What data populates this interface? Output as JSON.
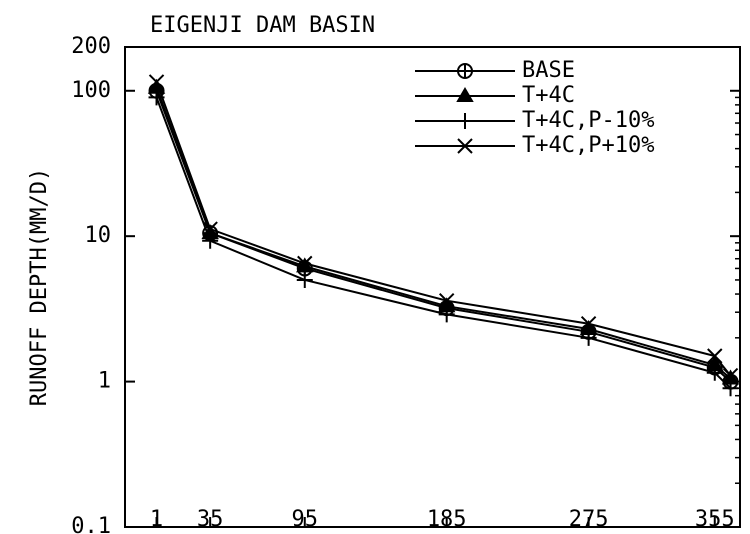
{
  "chart_data": {
    "type": "line",
    "title": "EIGENJI DAM BASIN",
    "y_label": "RUNOFF DEPTH(MM/D)",
    "x": [
      1,
      35,
      95,
      185,
      275,
      355,
      365
    ],
    "xlim": [
      -19,
      371
    ],
    "xticks": [
      1,
      35,
      95,
      185,
      275,
      355
    ],
    "ylim": [
      0.1,
      200
    ],
    "yticks": [
      0.1,
      1,
      10,
      100,
      200
    ],
    "log_y": true,
    "legend": "upper right",
    "series": [
      {
        "name": "BASE",
        "color": "#000000",
        "marker": "circle-plus",
        "values": [
          100,
          10.5,
          6,
          3.2,
          2.2,
          1.25,
          1.0
        ]
      },
      {
        "name": "T+4C",
        "color": "#000000",
        "marker": "triangle",
        "values": [
          105,
          10.5,
          6.2,
          3.3,
          2.3,
          1.3,
          1.05
        ]
      },
      {
        "name": "T+4C,P-10%",
        "color": "#000000",
        "marker": "plus",
        "values": [
          90,
          9.3,
          5,
          2.9,
          2.0,
          1.15,
          0.9
        ]
      },
      {
        "name": "T+4C,P+10%",
        "color": "#000000",
        "marker": "x",
        "values": [
          115,
          11.2,
          6.5,
          3.6,
          2.5,
          1.5,
          1.1
        ]
      }
    ]
  }
}
